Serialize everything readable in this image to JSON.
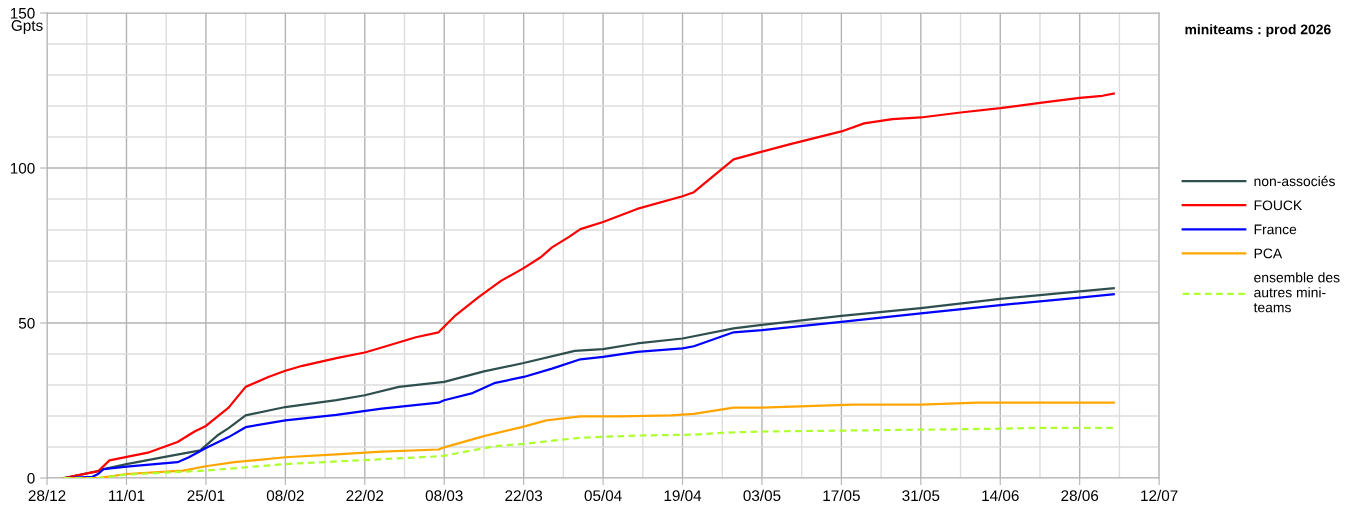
{
  "chart_data": {
    "type": "line",
    "title": "miniteams : prod 2026",
    "ylabel": "Gpts",
    "xlim": [
      "2025-12-28",
      "2026-07-12"
    ],
    "xticks": [
      {
        "value": "2025-12-28",
        "label": "28/12"
      },
      {
        "value": "2026-01-11",
        "label": "11/01"
      },
      {
        "value": "2026-01-25",
        "label": "25/01"
      },
      {
        "value": "2026-02-08",
        "label": "08/02"
      },
      {
        "value": "2026-02-22",
        "label": "22/02"
      },
      {
        "value": "2026-03-08",
        "label": "08/03"
      },
      {
        "value": "2026-03-22",
        "label": "22/03"
      },
      {
        "value": "2026-04-05",
        "label": "05/04"
      },
      {
        "value": "2026-04-19",
        "label": "19/04"
      },
      {
        "value": "2026-05-03",
        "label": "03/05"
      },
      {
        "value": "2026-05-17",
        "label": "17/05"
      },
      {
        "value": "2026-05-31",
        "label": "31/05"
      },
      {
        "value": "2026-06-14",
        "label": "14/06"
      },
      {
        "value": "2026-06-28",
        "label": "28/06"
      },
      {
        "value": "2026-07-12",
        "label": "12/07"
      }
    ],
    "ylim": [
      0,
      150
    ],
    "yticks": [
      0,
      50,
      100,
      150
    ],
    "grid": true,
    "legend": "right",
    "line_style": "solid",
    "marker": "none",
    "series": [
      {
        "name": "non-associés",
        "color": "#2f4f4f",
        "x": [
          "2025-12-31",
          "2026-01-06",
          "2026-01-07",
          "2026-01-11",
          "2026-01-18",
          "2026-01-24",
          "2026-01-27",
          "2026-01-29",
          "2026-02-01",
          "2026-02-08",
          "2026-02-17",
          "2026-02-22",
          "2026-02-28",
          "2026-03-08",
          "2026-03-15",
          "2026-03-22",
          "2026-03-31",
          "2026-04-05",
          "2026-04-11",
          "2026-04-19",
          "2026-04-28",
          "2026-05-03",
          "2026-05-17",
          "2026-05-31",
          "2026-06-14",
          "2026-06-28",
          "2026-07-04"
        ],
        "values": [
          0,
          2.2,
          2.9,
          4.5,
          6.9,
          8.9,
          13.7,
          16.1,
          20.2,
          22.9,
          25.1,
          26.7,
          29.4,
          31.0,
          34.4,
          37.1,
          41.0,
          41.6,
          43.4,
          45.0,
          48.3,
          49.4,
          52.3,
          54.8,
          57.8,
          60.2,
          61.2
        ]
      },
      {
        "name": "FOUCK",
        "color": "#ff0000",
        "x": [
          "2025-12-31",
          "2026-01-06",
          "2026-01-08",
          "2026-01-15",
          "2026-01-20",
          "2026-01-23",
          "2026-01-25",
          "2026-01-29",
          "2026-02-01",
          "2026-02-05",
          "2026-02-08",
          "2026-02-11",
          "2026-02-17",
          "2026-02-22",
          "2026-02-25",
          "2026-03-03",
          "2026-03-07",
          "2026-03-10",
          "2026-03-14",
          "2026-03-18",
          "2026-03-22",
          "2026-03-25",
          "2026-03-27",
          "2026-03-30",
          "2026-04-01",
          "2026-04-05",
          "2026-04-11",
          "2026-04-19",
          "2026-04-21",
          "2026-04-28",
          "2026-05-03",
          "2026-05-08",
          "2026-05-17",
          "2026-05-21",
          "2026-05-26",
          "2026-05-31",
          "2026-06-07",
          "2026-06-14",
          "2026-06-21",
          "2026-06-28",
          "2026-07-02",
          "2026-07-04"
        ],
        "values": [
          0,
          2.2,
          5.7,
          8.3,
          11.6,
          15,
          16.8,
          22.7,
          29.4,
          32.6,
          34.6,
          36.2,
          38.7,
          40.5,
          42.1,
          45.4,
          47.0,
          52.5,
          58.3,
          63.6,
          67.7,
          71.2,
          74.4,
          77.8,
          80.3,
          82.6,
          86.8,
          90.9,
          92.2,
          102.8,
          105.3,
          107.7,
          111.8,
          114.4,
          115.8,
          116.3,
          117.9,
          119.3,
          121.0,
          122.6,
          123.3,
          124.0
        ]
      },
      {
        "name": "France",
        "color": "#0000ff",
        "x": [
          "2025-12-31",
          "2026-01-05",
          "2026-01-06",
          "2026-01-07",
          "2026-01-11",
          "2026-01-20",
          "2026-01-22",
          "2026-01-25",
          "2026-01-29",
          "2026-02-01",
          "2026-02-08",
          "2026-02-17",
          "2026-02-25",
          "2026-03-07",
          "2026-03-08",
          "2026-03-13",
          "2026-03-17",
          "2026-03-22",
          "2026-03-27",
          "2026-04-01",
          "2026-04-05",
          "2026-04-11",
          "2026-04-19",
          "2026-04-21",
          "2026-04-28",
          "2026-05-03",
          "2026-05-17",
          "2026-05-31",
          "2026-06-14",
          "2026-06-28",
          "2026-07-04"
        ],
        "values": [
          0,
          0.4,
          1.3,
          2.9,
          3.7,
          5.1,
          6.7,
          9.7,
          13.2,
          16.4,
          18.6,
          20.4,
          22.4,
          24.3,
          25.1,
          27.4,
          30.7,
          32.6,
          35.3,
          38.3,
          39.1,
          40.7,
          41.8,
          42.5,
          47.0,
          47.7,
          50.4,
          53.1,
          55.8,
          58.2,
          59.3
        ]
      },
      {
        "name": "PCA",
        "color": "#ffa500",
        "x": [
          "2025-12-31",
          "2026-01-06",
          "2026-01-11",
          "2026-01-21",
          "2026-01-25",
          "2026-01-30",
          "2026-02-08",
          "2026-02-17",
          "2026-02-25",
          "2026-03-07",
          "2026-03-08",
          "2026-03-15",
          "2026-03-22",
          "2026-03-26",
          "2026-04-01",
          "2026-04-08",
          "2026-04-17",
          "2026-04-21",
          "2026-04-28",
          "2026-05-03",
          "2026-05-11",
          "2026-05-19",
          "2026-05-31",
          "2026-06-10",
          "2026-07-04"
        ],
        "values": [
          0,
          0,
          1.3,
          2.4,
          3.8,
          5.1,
          6.7,
          7.6,
          8.5,
          9.2,
          9.9,
          13.5,
          16.6,
          18.6,
          19.9,
          19.9,
          20.2,
          20.7,
          22.7,
          22.7,
          23.2,
          23.7,
          23.7,
          24.3,
          24.3
        ]
      },
      {
        "name": "ensemble des\nautres mini-\nteams",
        "color": "#adff2f",
        "line_style": "dashed",
        "x": [
          "2025-12-31",
          "2026-01-06",
          "2026-01-11",
          "2026-01-25",
          "2026-02-08",
          "2026-02-22",
          "2026-03-07",
          "2026-03-08",
          "2026-03-17",
          "2026-03-22",
          "2026-04-01",
          "2026-04-11",
          "2026-04-21",
          "2026-04-26",
          "2026-05-03",
          "2026-05-17",
          "2026-05-31",
          "2026-06-14",
          "2026-06-21",
          "2026-07-04"
        ],
        "values": [
          0,
          0,
          1.1,
          2.4,
          4.5,
          5.8,
          7.0,
          7.2,
          10.3,
          11.0,
          13.0,
          13.7,
          14.0,
          14.6,
          15.0,
          15.3,
          15.6,
          15.9,
          16.2,
          16.2
        ]
      }
    ]
  }
}
